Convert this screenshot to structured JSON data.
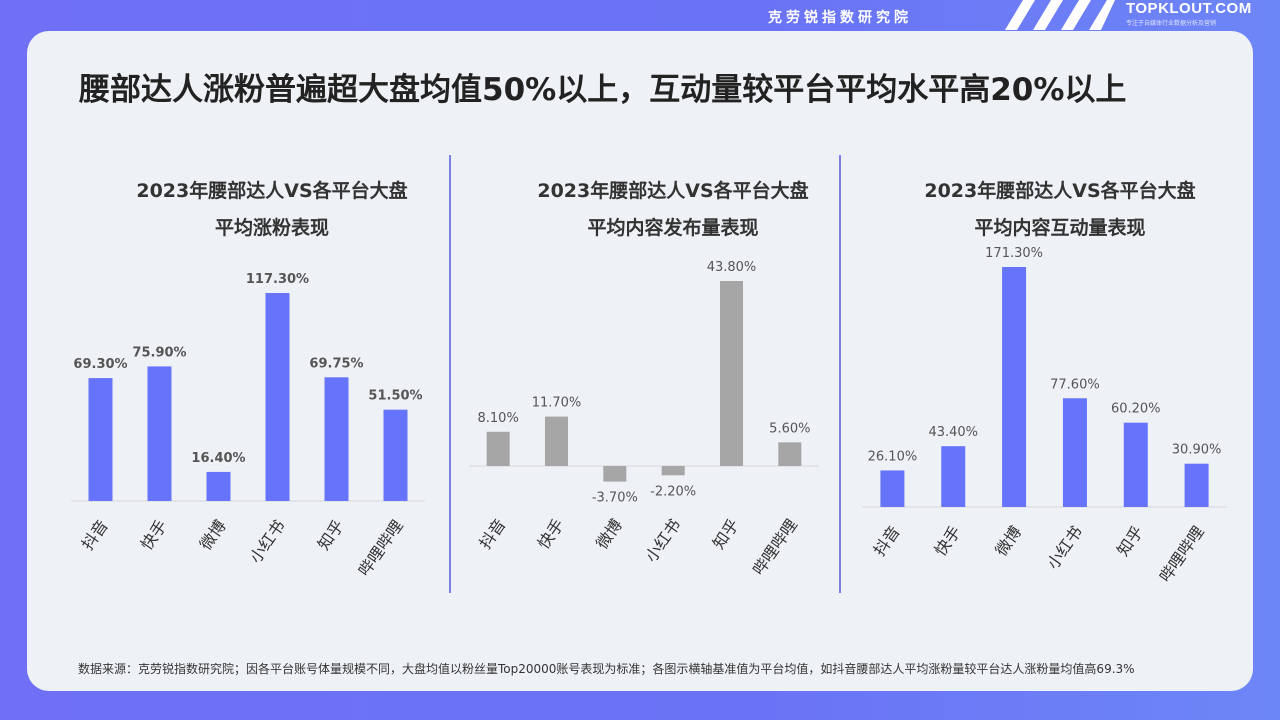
{
  "header": {
    "institute": "克劳锐指数研究院",
    "brand": "TOPKLOUT.COM",
    "brand_sub": "专注于自媒体行业数据分析及营销"
  },
  "headline": "腰部达人涨粉普遍超大盘均值50%以上，互动量较平台平均水平高20%以上",
  "footnote": "数据来源：克劳锐指数研究院；因各平台账号体量规模不同，大盘均值以粉丝量Top20000账号表现为标准；各图示横轴基准值为平台均值，如抖音腰部达人平均涨粉量较平台达人涨粉量均值高69.3%",
  "colors": {
    "bar_blue": "#6673fb",
    "bar_gray": "#a6a6a6",
    "divider": "#7a7fe0"
  },
  "chart_data": [
    {
      "type": "bar",
      "title": [
        "2023年腰部达人VS各平台大盘",
        "平均涨粉表现"
      ],
      "categories": [
        "抖音",
        "快手",
        "微博",
        "小红书",
        "知乎",
        "哔哩哔哩"
      ],
      "values": [
        69.3,
        75.9,
        16.4,
        117.3,
        69.75,
        51.5
      ],
      "labels": [
        "69.30%",
        "75.90%",
        "16.40%",
        "117.30%",
        "69.75%",
        "51.50%"
      ],
      "unit": "%",
      "color": "#6673fb",
      "ylim": [
        0,
        125
      ]
    },
    {
      "type": "bar",
      "title": [
        "2023年腰部达人VS各平台大盘",
        "平均内容发布量表现"
      ],
      "categories": [
        "抖音",
        "快手",
        "微博",
        "小红书",
        "知乎",
        "哔哩哔哩"
      ],
      "values": [
        8.1,
        11.7,
        -3.7,
        -2.2,
        43.8,
        5.6
      ],
      "labels": [
        "8.10%",
        "11.70%",
        "-3.70%",
        "-2.20%",
        "43.80%",
        "5.60%"
      ],
      "unit": "%",
      "color": "#a6a6a6",
      "ylim": [
        -10,
        48
      ]
    },
    {
      "type": "bar",
      "title": [
        "2023年腰部达人VS各平台大盘",
        "平均内容互动量表现"
      ],
      "categories": [
        "抖音",
        "快手",
        "微博",
        "小红书",
        "知乎",
        "哔哩哔哩"
      ],
      "values": [
        26.1,
        43.4,
        171.3,
        77.6,
        60.2,
        30.9
      ],
      "labels": [
        "26.10%",
        "43.40%",
        "171.30%",
        "77.60%",
        "60.20%",
        "30.90%"
      ],
      "unit": "%",
      "color": "#6673fb",
      "ylim": [
        0,
        185
      ]
    }
  ]
}
